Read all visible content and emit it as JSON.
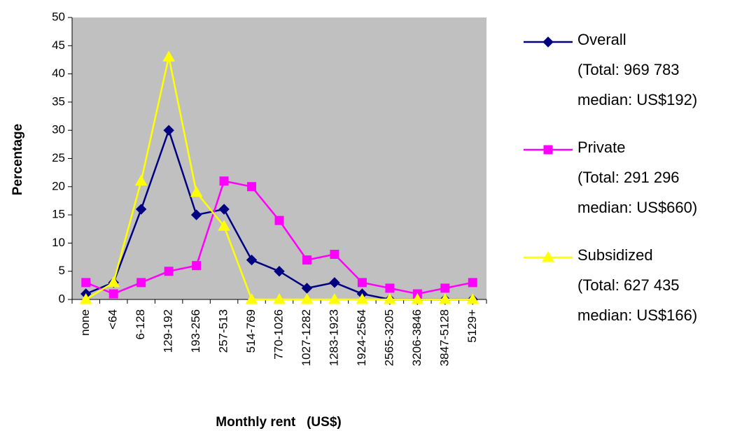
{
  "chart_data": {
    "type": "line",
    "x_label": "Monthly rent   (US$)",
    "y_label": "Percentage",
    "categories": [
      "none",
      "<64",
      "6-128",
      "129-192",
      "193-256",
      "257-513",
      "514-769",
      "770-1026",
      "1027-1282",
      "1283-1923",
      "1924-2564",
      "2565-3205",
      "3206-3846",
      "3847-5128",
      "5129+"
    ],
    "series": [
      {
        "name": "Overall",
        "details": [
          "(Total: 969 783",
          "median: US$192)"
        ],
        "color": "#000080",
        "marker": "diamond",
        "values": [
          1,
          3,
          16,
          30,
          15,
          16,
          7,
          5,
          2,
          3,
          1,
          0,
          0,
          0,
          0
        ]
      },
      {
        "name": "Private",
        "details": [
          "(Total: 291 296",
          "median: US$660)"
        ],
        "color": "#ff00ff",
        "marker": "square",
        "values": [
          3,
          1,
          3,
          5,
          6,
          21,
          20,
          14,
          7,
          8,
          3,
          2,
          1,
          2,
          3
        ]
      },
      {
        "name": "Subsidized",
        "details": [
          "(Total: 627 435",
          "median: US$166)"
        ],
        "color": "#ffff00",
        "marker": "triangle",
        "values": [
          0,
          3,
          21,
          43,
          19,
          13,
          0,
          0,
          0,
          0,
          0,
          0,
          0,
          0,
          0
        ]
      }
    ],
    "ylim": [
      0,
      50
    ],
    "yticks": [
      0,
      5,
      10,
      15,
      20,
      25,
      30,
      35,
      40,
      45,
      50
    ],
    "plot_background": "#c0c0c0",
    "legend": "right"
  }
}
